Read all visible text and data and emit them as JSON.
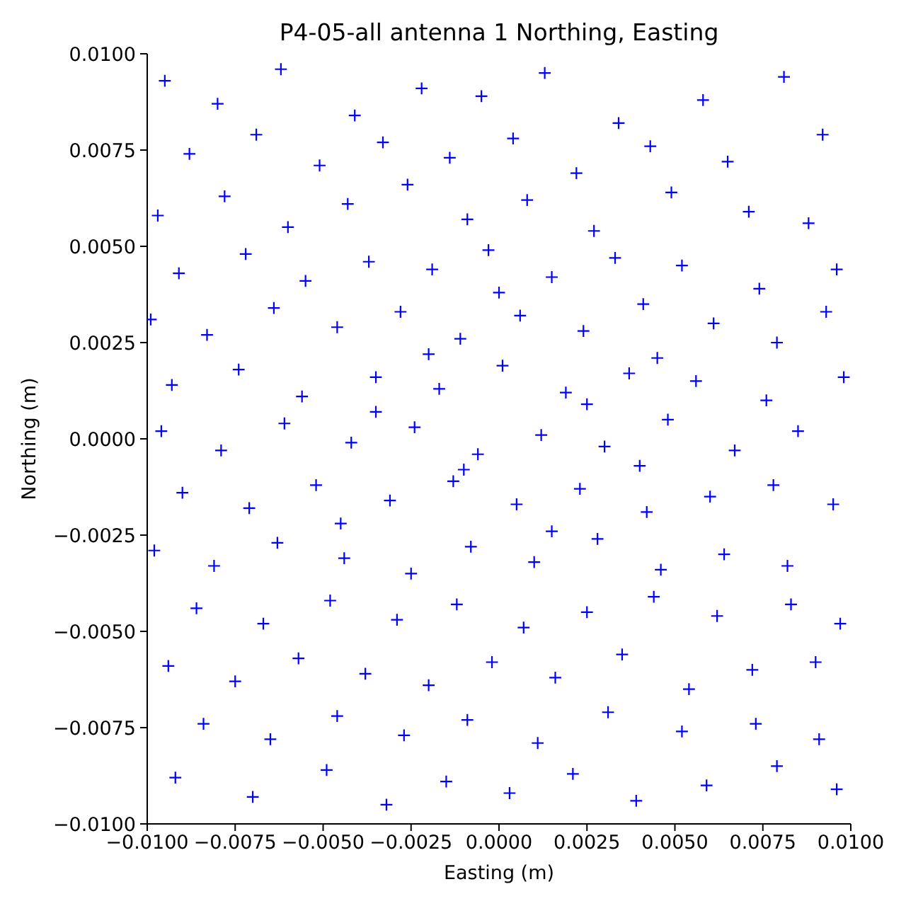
{
  "chart_data": {
    "type": "scatter",
    "title": "P4-05-all antenna 1 Northing, Easting",
    "xlabel": "Easting (m)",
    "ylabel": "Northing (m)",
    "color": "#0000ff",
    "marker": "cross",
    "xlim": [
      -0.01,
      0.01
    ],
    "ylim": [
      -0.01,
      0.01
    ],
    "xticks": [
      {
        "value": -0.01,
        "label": "−0.0100"
      },
      {
        "value": -0.0075,
        "label": "−0.0075"
      },
      {
        "value": -0.005,
        "label": "−0.0050"
      },
      {
        "value": -0.0025,
        "label": "−0.0025"
      },
      {
        "value": 0,
        "label": "0.0000"
      },
      {
        "value": 0.0025,
        "label": "0.0025"
      },
      {
        "value": 0.005,
        "label": "0.0050"
      },
      {
        "value": 0.0075,
        "label": "0.0075"
      },
      {
        "value": 0.01,
        "label": "0.0100"
      }
    ],
    "yticks": [
      {
        "value": -0.01,
        "label": "−0.0100"
      },
      {
        "value": -0.0075,
        "label": "−0.0075"
      },
      {
        "value": -0.005,
        "label": "−0.0050"
      },
      {
        "value": -0.0025,
        "label": "−0.0025"
      },
      {
        "value": 0,
        "label": "0.0000"
      },
      {
        "value": 0.0025,
        "label": "0.0025"
      },
      {
        "value": 0.005,
        "label": "0.0050"
      },
      {
        "value": 0.0075,
        "label": "0.0075"
      },
      {
        "value": 0.01,
        "label": "0.0100"
      }
    ],
    "x": [
      -0.0095,
      -0.008,
      -0.0062,
      -0.0041,
      -0.0022,
      -0.0005,
      0.0013,
      0.0034,
      0.0058,
      0.0081,
      -0.0088,
      -0.0069,
      -0.0051,
      -0.0033,
      -0.0014,
      0.0004,
      0.0022,
      0.0043,
      0.0065,
      0.0092,
      -0.0097,
      -0.0078,
      -0.006,
      -0.0043,
      -0.0026,
      -0.0009,
      0.0008,
      0.0027,
      0.0049,
      0.0071,
      0.0088,
      -0.0091,
      -0.0072,
      -0.0055,
      -0.0037,
      -0.0019,
      -0.0003,
      0.0015,
      0.0033,
      0.0052,
      0.0074,
      0.0096,
      -0.0099,
      -0.0083,
      -0.0064,
      -0.0046,
      -0.0028,
      -0.0011,
      0.0006,
      0.0024,
      0.0041,
      0.0061,
      0.0079,
      0.0093,
      -0.0093,
      -0.0074,
      -0.0056,
      -0.0035,
      -0.0017,
      0.0001,
      0.0019,
      0.0037,
      0.0056,
      0.0076,
      0.0098,
      -0.0096,
      -0.0079,
      -0.0061,
      -0.0042,
      -0.0024,
      -0.0006,
      0.0012,
      0.003,
      0.0048,
      0.0067,
      0.0085,
      -0.009,
      -0.0071,
      -0.0052,
      -0.0031,
      -0.0013,
      0.0005,
      0.0023,
      0.0042,
      0.006,
      0.0078,
      0.0095,
      -0.0098,
      -0.0081,
      -0.0063,
      -0.0044,
      -0.0025,
      -0.0008,
      0.001,
      0.0028,
      0.0046,
      0.0064,
      0.0082,
      -0.0086,
      -0.0067,
      -0.0048,
      -0.0029,
      -0.0012,
      0.0007,
      0.0025,
      0.0044,
      0.0062,
      0.0083,
      0.0097,
      -0.0094,
      -0.0075,
      -0.0057,
      -0.0038,
      -0.002,
      -0.0002,
      0.0016,
      0.0035,
      0.0054,
      0.0072,
      0.009,
      -0.0084,
      -0.0065,
      -0.0046,
      -0.0027,
      -0.0009,
      0.0011,
      0.0031,
      0.0052,
      0.0073,
      0.0091,
      -0.0092,
      -0.007,
      -0.0049,
      -0.0032,
      -0.0015,
      0.0003,
      0.0021,
      0.0039,
      0.0059,
      0.0079,
      0.0096,
      -0.0035,
      -0.002,
      -0.001,
      0.0,
      0.0015,
      0.0025,
      0.004,
      -0.0045,
      0.0045
    ],
    "values": [
      0.0093,
      0.0087,
      0.0096,
      0.0084,
      0.0091,
      0.0089,
      0.0095,
      0.0082,
      0.0088,
      0.0094,
      0.0074,
      0.0079,
      0.0071,
      0.0077,
      0.0073,
      0.0078,
      0.0069,
      0.0076,
      0.0072,
      0.0079,
      0.0058,
      0.0063,
      0.0055,
      0.0061,
      0.0066,
      0.0057,
      0.0062,
      0.0054,
      0.0064,
      0.0059,
      0.0056,
      0.0043,
      0.0048,
      0.0041,
      0.0046,
      0.0044,
      0.0049,
      0.0042,
      0.0047,
      0.0045,
      0.0039,
      0.0044,
      0.0031,
      0.0027,
      0.0034,
      0.0029,
      0.0033,
      0.0026,
      0.0032,
      0.0028,
      0.0035,
      0.003,
      0.0025,
      0.0033,
      0.0014,
      0.0018,
      0.0011,
      0.0016,
      0.0013,
      0.0019,
      0.0012,
      0.0017,
      0.0015,
      0.001,
      0.0016,
      0.0002,
      -0.0003,
      0.0004,
      -0.0001,
      0.0003,
      -0.0004,
      0.0001,
      -0.0002,
      0.0005,
      -0.0003,
      0.0002,
      -0.0014,
      -0.0018,
      -0.0012,
      -0.0016,
      -0.0011,
      -0.0017,
      -0.0013,
      -0.0019,
      -0.0015,
      -0.0012,
      -0.0017,
      -0.0029,
      -0.0033,
      -0.0027,
      -0.0031,
      -0.0035,
      -0.0028,
      -0.0032,
      -0.0026,
      -0.0034,
      -0.003,
      -0.0033,
      -0.0044,
      -0.0048,
      -0.0042,
      -0.0047,
      -0.0043,
      -0.0049,
      -0.0045,
      -0.0041,
      -0.0046,
      -0.0043,
      -0.0048,
      -0.0059,
      -0.0063,
      -0.0057,
      -0.0061,
      -0.0064,
      -0.0058,
      -0.0062,
      -0.0056,
      -0.0065,
      -0.006,
      -0.0058,
      -0.0074,
      -0.0078,
      -0.0072,
      -0.0077,
      -0.0073,
      -0.0079,
      -0.0071,
      -0.0076,
      -0.0074,
      -0.0078,
      -0.0088,
      -0.0093,
      -0.0086,
      -0.0095,
      -0.0089,
      -0.0092,
      -0.0087,
      -0.0094,
      -0.009,
      -0.0085,
      -0.0091,
      0.0007,
      0.0022,
      -0.0008,
      0.0038,
      -0.0024,
      0.0009,
      -0.0007,
      -0.0022,
      0.0021
    ]
  }
}
